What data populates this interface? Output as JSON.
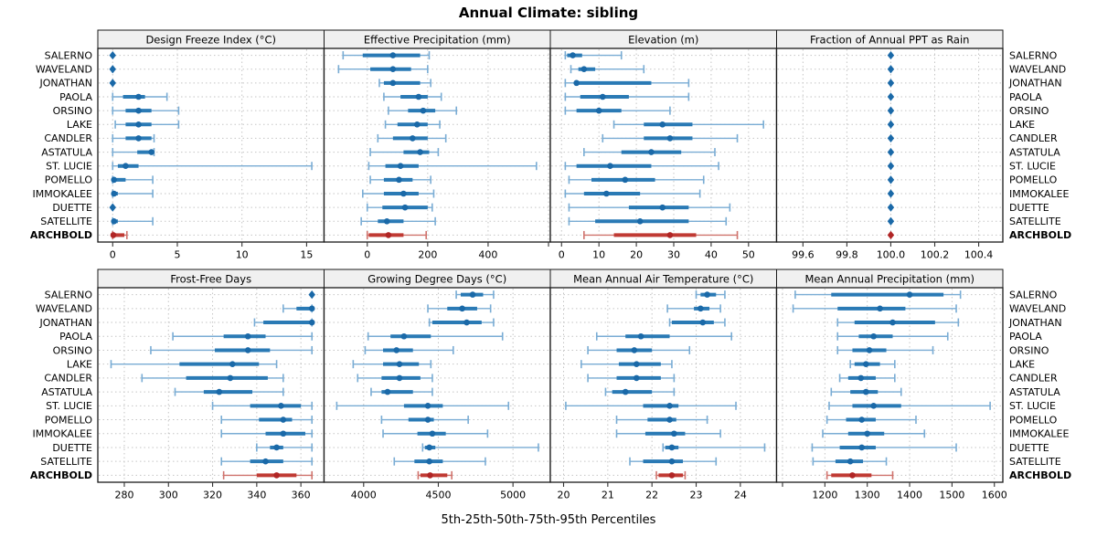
{
  "title": "Annual Climate: sibling",
  "xlabel": "5th-25th-50th-75th-95th Percentiles",
  "colors": {
    "blue_dot": "#1A69A8",
    "blue_bar": "#2A7AB5",
    "blue_line": "#79ACD4",
    "red_dot": "#B02525",
    "red_bar": "#C03A33",
    "red_line": "#D0736D",
    "strip_bg": "#F0F0F0",
    "grid": "#C5C5C5",
    "border": "#1A1A1A",
    "tick": "#333333"
  },
  "chart_data": {
    "type": "dotplot-percentiles",
    "percentile_levels": [
      5,
      25,
      50,
      75,
      95
    ],
    "legend_note": "5th-25th-50th-75th-95th Percentiles",
    "sites": [
      "SALERNO",
      "WAVELAND",
      "JONATHAN",
      "PAOLA",
      "ORSINO",
      "LAKE",
      "CANDLER",
      "ASTATULA",
      "ST. LUCIE",
      "POMELLO",
      "IMMOKALEE",
      "DUETTE",
      "SATELLITE",
      "ARCHBOLD"
    ],
    "highlight_site": "ARCHBOLD",
    "panels": [
      {
        "title": "Design Freeze Index (°C)",
        "grid_row": 0,
        "grid_col": 0,
        "xlim": [
          -1.15,
          16.35
        ],
        "ticks": [
          0,
          5,
          10,
          15
        ],
        "tick_labels": [
          "0",
          "5",
          "10",
          "15"
        ],
        "values": {
          "SALERNO": [
            0,
            0,
            0,
            0,
            0
          ],
          "WAVELAND": [
            0,
            0,
            0,
            0,
            0
          ],
          "JONATHAN": [
            0,
            0,
            0,
            0,
            0
          ],
          "PAOLA": [
            0,
            0.8,
            2,
            2.5,
            4.2
          ],
          "ORSINO": [
            0,
            1,
            2,
            3,
            5.1
          ],
          "LAKE": [
            0.2,
            1,
            2,
            3,
            5.1
          ],
          "CANDLER": [
            0,
            1,
            2,
            3,
            3.2
          ],
          "ASTATULA": [
            0,
            1.9,
            3,
            3.1,
            3.2
          ],
          "ST. LUCIE": [
            0,
            0.4,
            1,
            2,
            15.4
          ],
          "POMELLO": [
            0,
            0,
            0.1,
            1,
            3.1
          ],
          "IMMOKALEE": [
            0,
            0,
            0.1,
            0.4,
            3.1
          ],
          "DUETTE": [
            0,
            0,
            0,
            0,
            0
          ],
          "SATELLITE": [
            0,
            0,
            0.1,
            0.4,
            3.1
          ],
          "ARCHBOLD": [
            0,
            0,
            0.05,
            0.9,
            1.1
          ]
        }
      },
      {
        "title": "Effective Precipitation (mm)",
        "grid_row": 0,
        "grid_col": 1,
        "xlim": [
          -143,
          606
        ],
        "ticks": [
          0,
          200,
          400,
          600
        ],
        "tick_labels": [
          "0",
          "200",
          "400",
          ""
        ],
        "values": {
          "SALERNO": [
            -80,
            -15,
            85,
            175,
            205
          ],
          "WAVELAND": [
            -95,
            10,
            85,
            145,
            200
          ],
          "JONATHAN": [
            40,
            55,
            85,
            175,
            210
          ],
          "PAOLA": [
            55,
            110,
            170,
            200,
            245
          ],
          "ORSINO": [
            70,
            135,
            185,
            225,
            295
          ],
          "LAKE": [
            60,
            100,
            165,
            200,
            240
          ],
          "CANDLER": [
            35,
            85,
            150,
            200,
            260
          ],
          "ASTATULA": [
            10,
            120,
            175,
            205,
            235
          ],
          "ST. LUCIE": [
            5,
            60,
            110,
            170,
            560
          ],
          "POMELLO": [
            10,
            55,
            105,
            150,
            210
          ],
          "IMMOKALEE": [
            -15,
            55,
            120,
            170,
            220
          ],
          "DUETTE": [
            0,
            50,
            125,
            200,
            215
          ],
          "SATELLITE": [
            -20,
            35,
            65,
            120,
            225
          ],
          "ARCHBOLD": [
            0,
            5,
            70,
            120,
            195
          ]
        }
      },
      {
        "title": "Elevation (m)",
        "grid_row": 0,
        "grid_col": 2,
        "xlim": [
          -3,
          57.5
        ],
        "ticks": [
          0,
          10,
          20,
          30,
          40,
          50
        ],
        "tick_labels": [
          "0",
          "10",
          "20",
          "30",
          "40",
          "50"
        ],
        "values": {
          "SALERNO": [
            1,
            1.5,
            3,
            5.5,
            16
          ],
          "WAVELAND": [
            2.5,
            4.5,
            6,
            9,
            22
          ],
          "JONATHAN": [
            1,
            3.5,
            4,
            24,
            34
          ],
          "PAOLA": [
            1,
            5,
            11,
            18,
            34
          ],
          "ORSINO": [
            1,
            4,
            10,
            16,
            29
          ],
          "LAKE": [
            14,
            22,
            27,
            35,
            54
          ],
          "CANDLER": [
            11,
            22,
            29,
            35,
            47
          ],
          "ASTATULA": [
            6,
            16,
            24,
            32,
            41
          ],
          "ST. LUCIE": [
            1,
            4,
            13,
            24,
            42
          ],
          "POMELLO": [
            2,
            8,
            17,
            25,
            38
          ],
          "IMMOKALEE": [
            1,
            6,
            12,
            21,
            37
          ],
          "DUETTE": [
            2,
            18,
            27,
            34,
            45
          ],
          "SATELLITE": [
            2,
            9,
            21,
            34,
            44
          ],
          "ARCHBOLD": [
            6,
            14,
            29,
            36,
            47
          ]
        }
      },
      {
        "title": "Fraction of Annual PPT as Rain",
        "grid_row": 0,
        "grid_col": 3,
        "xlim": [
          99.48,
          100.51
        ],
        "ticks": [
          99.6,
          99.8,
          100.0,
          100.2,
          100.4
        ],
        "tick_labels": [
          "99.6",
          "99.8",
          "100.0",
          "100.2",
          "100.4"
        ],
        "values": {
          "SALERNO": [
            100,
            100,
            100,
            100,
            100
          ],
          "WAVELAND": [
            100,
            100,
            100,
            100,
            100
          ],
          "JONATHAN": [
            100,
            100,
            100,
            100,
            100
          ],
          "PAOLA": [
            100,
            100,
            100,
            100,
            100
          ],
          "ORSINO": [
            100,
            100,
            100,
            100,
            100
          ],
          "LAKE": [
            100,
            100,
            100,
            100,
            100
          ],
          "CANDLER": [
            100,
            100,
            100,
            100,
            100
          ],
          "ASTATULA": [
            100,
            100,
            100,
            100,
            100
          ],
          "ST. LUCIE": [
            100,
            100,
            100,
            100,
            100
          ],
          "POMELLO": [
            100,
            100,
            100,
            100,
            100
          ],
          "IMMOKALEE": [
            100,
            100,
            100,
            100,
            100
          ],
          "DUETTE": [
            100,
            100,
            100,
            100,
            100
          ],
          "SATELLITE": [
            100,
            100,
            100,
            100,
            100
          ],
          "ARCHBOLD": [
            100,
            100,
            100,
            100,
            100
          ]
        }
      },
      {
        "title": "Frost-Free Days",
        "grid_row": 1,
        "grid_col": 0,
        "xlim": [
          268,
          370.5
        ],
        "ticks": [
          280,
          300,
          320,
          340,
          360
        ],
        "tick_labels": [
          "280",
          "300",
          "320",
          "340",
          "360"
        ],
        "values": {
          "SALERNO": [
            365,
            365,
            365,
            365,
            365
          ],
          "WAVELAND": [
            352,
            358,
            365,
            365,
            365
          ],
          "JONATHAN": [
            339,
            343,
            365,
            365,
            365
          ],
          "PAOLA": [
            302,
            325,
            336,
            344,
            365
          ],
          "ORSINO": [
            292,
            321,
            336,
            346,
            365
          ],
          "LAKE": [
            274,
            305,
            329,
            341,
            349
          ],
          "CANDLER": [
            288,
            308,
            328,
            345,
            352
          ],
          "ASTATULA": [
            303,
            316,
            323,
            338,
            352
          ],
          "ST. LUCIE": [
            320,
            337,
            351,
            360,
            365
          ],
          "POMELLO": [
            324,
            341,
            352,
            356,
            365
          ],
          "IMMOKALEE": [
            324,
            344,
            352,
            362,
            365
          ],
          "DUETTE": [
            340,
            346,
            349,
            352,
            365
          ],
          "SATELLITE": [
            324,
            337,
            344,
            352,
            365
          ],
          "ARCHBOLD": [
            325,
            340,
            349,
            358,
            365
          ]
        }
      },
      {
        "title": "Growing Degree Days (°C)",
        "grid_row": 1,
        "grid_col": 1,
        "xlim": [
          3735,
          5250
        ],
        "ticks": [
          4000,
          4500,
          5000
        ],
        "tick_labels": [
          "4000",
          "4500",
          "5000"
        ],
        "values": {
          "SALERNO": [
            4620,
            4650,
            4730,
            4800,
            4870
          ],
          "WAVELAND": [
            4430,
            4560,
            4660,
            4760,
            4850
          ],
          "JONATHAN": [
            4440,
            4460,
            4690,
            4790,
            4870
          ],
          "PAOLA": [
            4030,
            4180,
            4270,
            4450,
            4930
          ],
          "ORSINO": [
            4010,
            4130,
            4220,
            4330,
            4600
          ],
          "LAKE": [
            3930,
            4130,
            4240,
            4370,
            4450
          ],
          "CANDLER": [
            3960,
            4120,
            4240,
            4380,
            4460
          ],
          "ASTATULA": [
            4050,
            4120,
            4160,
            4330,
            4460
          ],
          "ST. LUCIE": [
            3820,
            4270,
            4430,
            4530,
            4970
          ],
          "POMELLO": [
            4120,
            4300,
            4430,
            4470,
            4700
          ],
          "IMMOKALEE": [
            4130,
            4360,
            4460,
            4550,
            4830
          ],
          "DUETTE": [
            4395,
            4410,
            4440,
            4480,
            5170
          ],
          "SATELLITE": [
            4205,
            4340,
            4440,
            4530,
            4815
          ],
          "ARCHBOLD": [
            4365,
            4380,
            4445,
            4560,
            4590
          ]
        }
      },
      {
        "title": "Mean Annual Air Temperature (°C)",
        "grid_row": 1,
        "grid_col": 2,
        "xlim": [
          19.7,
          24.82
        ],
        "ticks": [
          20,
          21,
          22,
          23,
          24
        ],
        "tick_labels": [
          "20",
          "21",
          "22",
          "23",
          "24"
        ],
        "values": {
          "SALERNO": [
            23.0,
            23.1,
            23.25,
            23.45,
            23.65
          ],
          "WAVELAND": [
            22.35,
            22.95,
            23.1,
            23.3,
            23.55
          ],
          "JONATHAN": [
            22.4,
            22.45,
            23.15,
            23.4,
            23.65
          ],
          "PAOLA": [
            20.75,
            21.4,
            21.75,
            22.4,
            23.8
          ],
          "ORSINO": [
            20.55,
            21.2,
            21.6,
            22.0,
            22.85
          ],
          "LAKE": [
            20.4,
            21.25,
            21.65,
            22.2,
            22.45
          ],
          "CANDLER": [
            20.55,
            21.2,
            21.65,
            22.2,
            22.5
          ],
          "ASTATULA": [
            20.95,
            21.1,
            21.4,
            22.0,
            22.5
          ],
          "ST. LUCIE": [
            20.05,
            21.8,
            22.4,
            22.6,
            23.9
          ],
          "POMELLO": [
            21.2,
            21.9,
            22.4,
            22.55,
            23.25
          ],
          "IMMOKALEE": [
            21.2,
            21.85,
            22.5,
            22.75,
            23.55
          ],
          "DUETTE": [
            22.25,
            22.3,
            22.45,
            22.6,
            24.55
          ],
          "SATELLITE": [
            21.5,
            21.8,
            22.45,
            22.7,
            23.45
          ],
          "ARCHBOLD": [
            22.1,
            22.15,
            22.45,
            22.7,
            22.75
          ]
        }
      },
      {
        "title": "Mean Annual Precipitation (mm)",
        "grid_row": 1,
        "grid_col": 3,
        "xlim": [
          1086,
          1620
        ],
        "ticks": [
          1100,
          1200,
          1300,
          1400,
          1500,
          1600
        ],
        "tick_labels": [
          "",
          "1200",
          "1300",
          "1400",
          "1500",
          "1600"
        ],
        "values": {
          "SALERNO": [
            1130,
            1215,
            1400,
            1480,
            1520
          ],
          "WAVELAND": [
            1125,
            1230,
            1330,
            1390,
            1510
          ],
          "JONATHAN": [
            1230,
            1270,
            1360,
            1460,
            1515
          ],
          "PAOLA": [
            1230,
            1280,
            1315,
            1360,
            1490
          ],
          "ORSINO": [
            1230,
            1265,
            1305,
            1345,
            1455
          ],
          "LAKE": [
            1260,
            1270,
            1297,
            1330,
            1365
          ],
          "CANDLER": [
            1235,
            1255,
            1285,
            1320,
            1365
          ],
          "ASTATULA": [
            1215,
            1260,
            1297,
            1325,
            1380
          ],
          "ST. LUCIE": [
            1210,
            1265,
            1315,
            1380,
            1590
          ],
          "POMELLO": [
            1205,
            1250,
            1287,
            1320,
            1415
          ],
          "IMMOKALEE": [
            1195,
            1255,
            1300,
            1340,
            1435
          ],
          "DUETTE": [
            1170,
            1235,
            1287,
            1320,
            1510
          ],
          "SATELLITE": [
            1172,
            1225,
            1260,
            1290,
            1345
          ],
          "ARCHBOLD": [
            1205,
            1215,
            1265,
            1310,
            1360
          ]
        }
      }
    ]
  }
}
